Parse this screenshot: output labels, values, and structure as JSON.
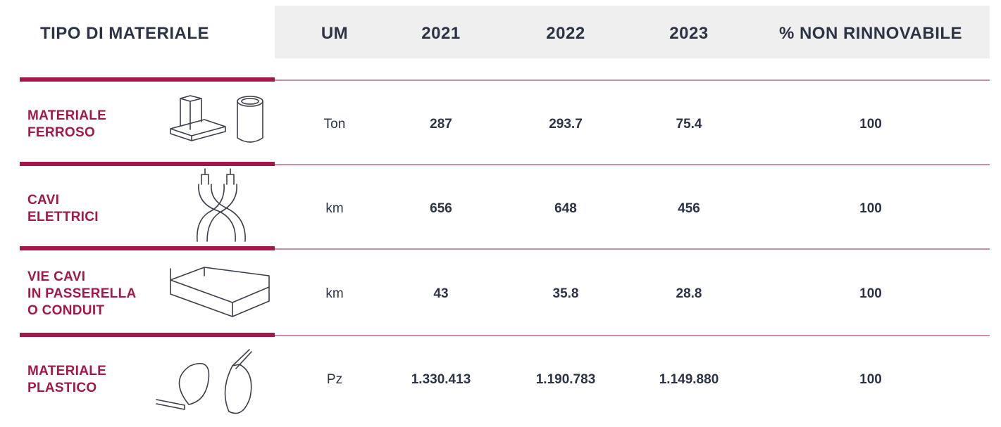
{
  "header": {
    "title": "TIPO DI MATERIALE",
    "columns": [
      "UM",
      "2021",
      "2022",
      "2023",
      "% NON RINNOVABILE"
    ]
  },
  "table": {
    "rows": [
      {
        "label": [
          "MATERIALE",
          "FERROSO"
        ],
        "cells": [
          "Ton",
          287,
          293.7,
          75.4,
          100
        ]
      },
      {
        "label": [
          "CAVI",
          "ELETTRICI"
        ],
        "cells": [
          "km",
          656,
          648,
          456,
          100
        ]
      },
      {
        "label": [
          "VIE CAVI",
          "IN PASSERELLA",
          "O CONDUIT"
        ],
        "cells": [
          "km",
          43,
          35.8,
          28.8,
          100
        ]
      },
      {
        "label": [
          "MATERIALE",
          "PLASTICO"
        ],
        "cells": [
          "Pz",
          "1.330.413",
          "1.190.783",
          "1.149.880",
          100
        ]
      }
    ]
  }
}
